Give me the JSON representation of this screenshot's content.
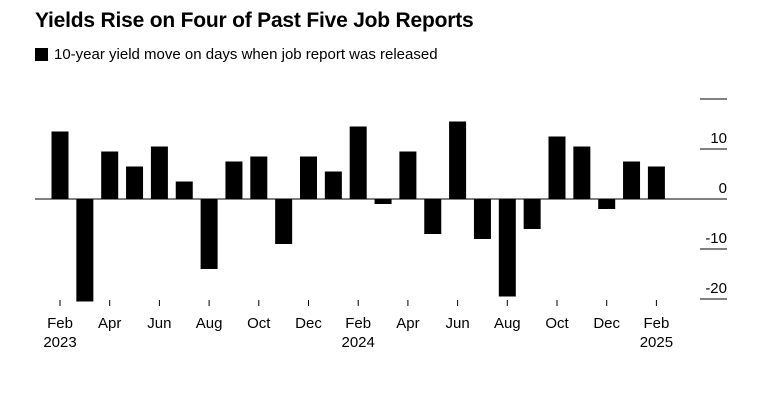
{
  "chart_data": {
    "type": "bar",
    "title": "Yields Rise on Four of Past Five Job Reports",
    "legend": [
      {
        "label": "10-year yield move on days when job report was released",
        "color": "#000000"
      }
    ],
    "legend_position": "top-left",
    "ylabel": "",
    "xlabel": "",
    "ylim": [
      -20,
      20
    ],
    "yticks": [
      -20,
      -10,
      0,
      10
    ],
    "grid": false,
    "series": [
      {
        "name": "10-year yield move on days when job report was released",
        "color": "#000000",
        "points": [
          {
            "date": "2023-02",
            "value": 13.5
          },
          {
            "date": "2023-03",
            "value": -20.5
          },
          {
            "date": "2023-04",
            "value": 9.5
          },
          {
            "date": "2023-05",
            "value": 6.5
          },
          {
            "date": "2023-06",
            "value": 10.5
          },
          {
            "date": "2023-07",
            "value": 3.5
          },
          {
            "date": "2023-08",
            "value": -14
          },
          {
            "date": "2023-09",
            "value": 7.5
          },
          {
            "date": "2023-10",
            "value": 8.5
          },
          {
            "date": "2023-11",
            "value": -9
          },
          {
            "date": "2023-12",
            "value": 8.5
          },
          {
            "date": "2024-01",
            "value": 5.5
          },
          {
            "date": "2024-02",
            "value": 14.5
          },
          {
            "date": "2024-03",
            "value": -1
          },
          {
            "date": "2024-04",
            "value": 9.5
          },
          {
            "date": "2024-05",
            "value": -7
          },
          {
            "date": "2024-06",
            "value": 15.5
          },
          {
            "date": "2024-07",
            "value": -8
          },
          {
            "date": "2024-08",
            "value": -19.5
          },
          {
            "date": "2024-09",
            "value": -6
          },
          {
            "date": "2024-10",
            "value": 12.5
          },
          {
            "date": "2024-11",
            "value": 10.5
          },
          {
            "date": "2024-12",
            "value": -2
          },
          {
            "date": "2025-01",
            "value": 7.5
          },
          {
            "date": "2025-02",
            "value": 6.5
          }
        ]
      }
    ],
    "x_ticks": [
      {
        "date": "2023-02",
        "label": "Feb",
        "year": "2023"
      },
      {
        "date": "2023-04",
        "label": "Apr",
        "year": ""
      },
      {
        "date": "2023-06",
        "label": "Jun",
        "year": ""
      },
      {
        "date": "2023-08",
        "label": "Aug",
        "year": ""
      },
      {
        "date": "2023-10",
        "label": "Oct",
        "year": ""
      },
      {
        "date": "2023-12",
        "label": "Dec",
        "year": ""
      },
      {
        "date": "2024-02",
        "label": "Feb",
        "year": "2024"
      },
      {
        "date": "2024-04",
        "label": "Apr",
        "year": ""
      },
      {
        "date": "2024-06",
        "label": "Jun",
        "year": ""
      },
      {
        "date": "2024-08",
        "label": "Aug",
        "year": ""
      },
      {
        "date": "2024-10",
        "label": "Oct",
        "year": ""
      },
      {
        "date": "2024-12",
        "label": "Dec",
        "year": ""
      },
      {
        "date": "2025-02",
        "label": "Feb",
        "year": "2025"
      }
    ]
  }
}
